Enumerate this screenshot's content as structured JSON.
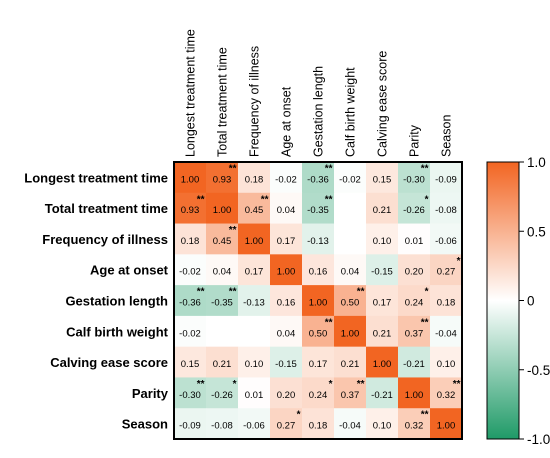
{
  "chart_data": {
    "type": "heatmap",
    "title": "",
    "xlabel": "",
    "ylabel": "",
    "rows": [
      "Longest treatment time",
      "Total treatment time",
      "Frequency of illness",
      "Age at onset",
      "Gestation length",
      "Calf birth weight",
      "Calving ease score",
      "Parity",
      "Season"
    ],
    "columns": [
      "Longest treatment time",
      "Total treatment time",
      "Frequency of illness",
      "Age at onset",
      "Gestation length",
      "Calf birth weight",
      "Calving ease score",
      "Parity",
      "Season"
    ],
    "values": [
      [
        1.0,
        0.93,
        0.18,
        -0.02,
        -0.36,
        -0.02,
        0.15,
        -0.3,
        -0.09
      ],
      [
        0.93,
        1.0,
        0.45,
        0.04,
        -0.35,
        null,
        0.21,
        -0.26,
        -0.08
      ],
      [
        0.18,
        0.45,
        1.0,
        0.17,
        -0.13,
        null,
        0.1,
        0.01,
        -0.06
      ],
      [
        -0.02,
        0.04,
        0.17,
        1.0,
        0.16,
        0.04,
        -0.15,
        0.2,
        0.27
      ],
      [
        -0.36,
        -0.35,
        -0.13,
        0.16,
        1.0,
        0.5,
        0.17,
        0.24,
        0.18
      ],
      [
        -0.02,
        null,
        null,
        0.04,
        0.5,
        1.0,
        0.21,
        0.37,
        -0.04
      ],
      [
        0.15,
        0.21,
        0.1,
        -0.15,
        0.17,
        0.21,
        1.0,
        -0.21,
        0.1
      ],
      [
        -0.3,
        -0.26,
        0.01,
        0.2,
        0.24,
        0.37,
        -0.21,
        1.0,
        0.32
      ],
      [
        -0.09,
        -0.08,
        -0.06,
        0.27,
        0.18,
        -0.04,
        0.1,
        0.32,
        1.0
      ]
    ],
    "labels": [
      [
        "1.00",
        "0.93",
        "0.18",
        "-0.02",
        "-0.36",
        "-0.02",
        "0.15",
        "-0.30",
        "-0.09"
      ],
      [
        "0.93",
        "1.00",
        "0.45",
        "0.04",
        "-0.35",
        "",
        "0.21",
        "-0.26",
        "-0.08"
      ],
      [
        "0.18",
        "0.45",
        "1.00",
        "0.17",
        "-0.13",
        "",
        "0.10",
        "0.01",
        "-0.06"
      ],
      [
        "-0.02",
        "0.04",
        "0.17",
        "1.00",
        "0.16",
        "0.04",
        "-0.15",
        "0.20",
        "0.27"
      ],
      [
        "-0.36",
        "-0.35",
        "-0.13",
        "0.16",
        "1.00",
        "0.50",
        "0.17",
        "0.24",
        "0.18"
      ],
      [
        "-0.02",
        "",
        "",
        "0.04",
        "0.50",
        "1.00",
        "0.21",
        "0.37",
        "-0.04"
      ],
      [
        "0.15",
        "0.21",
        "0.10",
        "-0.15",
        "0.17",
        "0.21",
        "1.00",
        "-0.21",
        "0.10"
      ],
      [
        "-0.30",
        "-0.26",
        "0.01",
        "0.20",
        "0.24",
        "0.37",
        "-0.21",
        "1.00",
        "0.32"
      ],
      [
        "-0.09",
        "-0.08",
        "-0.06",
        "0.27",
        "0.18",
        "-0.04",
        "0.10",
        "0.32",
        "1.00"
      ]
    ],
    "significance": [
      [
        "",
        "**",
        "",
        "",
        "**",
        "",
        "",
        "**",
        ""
      ],
      [
        "**",
        "",
        "**",
        "",
        "**",
        "",
        "",
        "*",
        ""
      ],
      [
        "",
        "**",
        "",
        "",
        "",
        "",
        "",
        "",
        ""
      ],
      [
        "",
        "",
        "",
        "",
        "",
        "",
        "",
        "",
        "*"
      ],
      [
        "**",
        "**",
        "",
        "",
        "",
        "**",
        "",
        "*",
        ""
      ],
      [
        "",
        "",
        "",
        "",
        "**",
        "",
        "",
        "**",
        ""
      ],
      [
        "",
        "",
        "",
        "",
        "",
        "",
        "",
        "",
        ""
      ],
      [
        "**",
        "*",
        "",
        "",
        "*",
        "**",
        "",
        "",
        "**"
      ],
      [
        "",
        "",
        "",
        "*",
        "",
        "",
        "",
        "**",
        ""
      ]
    ],
    "colorbar": {
      "range": [
        -1.0,
        1.0
      ],
      "ticks": [
        1.0,
        0.5,
        0,
        -0.5,
        -1.0
      ],
      "tick_labels": [
        "1.0",
        "0.5",
        "0",
        "-0.5",
        "-1.0"
      ]
    },
    "colors": {
      "positive": "#f26522",
      "neutral": "#ffffff",
      "negative": "#1f9a67"
    }
  }
}
